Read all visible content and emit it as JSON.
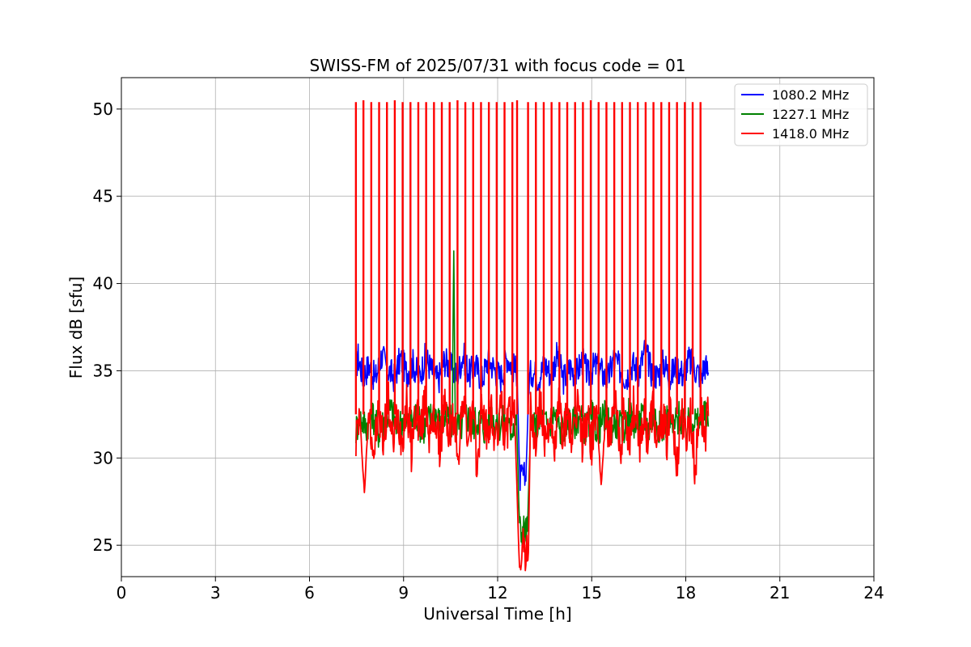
{
  "chart_data": {
    "type": "line",
    "title": "SWISS-FM of 2025/07/31 with focus code = 01",
    "xlabel": "Universal Time [h]",
    "ylabel": "Flux dB [sfu]",
    "xlim": [
      0,
      24
    ],
    "ylim": [
      23.2,
      51.8
    ],
    "xticks": [
      "0",
      "3",
      "6",
      "9",
      "12",
      "15",
      "18",
      "21",
      "24"
    ],
    "yticks": [
      "25",
      "30",
      "35",
      "40",
      "45",
      "50"
    ],
    "grid": true,
    "legend_position": "top-right",
    "series": [
      {
        "name": "1080.2 MHz",
        "color": "#0000ff",
        "x": [
          7.48,
          7.55,
          7.7,
          7.9,
          8.1,
          8.3,
          8.5,
          8.7,
          8.9,
          9.1,
          9.3,
          9.5,
          9.7,
          9.9,
          10.1,
          10.3,
          10.5,
          10.7,
          10.9,
          11.1,
          11.3,
          11.5,
          11.7,
          11.9,
          12.1,
          12.3,
          12.5,
          12.62,
          12.7,
          12.75,
          12.8,
          12.9,
          13.0,
          13.1,
          13.3,
          13.5,
          13.7,
          13.9,
          14.1,
          14.3,
          14.5,
          14.7,
          14.9,
          15.1,
          15.3,
          15.5,
          15.7,
          15.9,
          16.1,
          16.3,
          16.5,
          16.7,
          16.9,
          17.1,
          17.3,
          17.5,
          17.7,
          17.9,
          18.1,
          18.3,
          18.5,
          18.6,
          18.72
        ],
        "values": [
          35.2,
          35.8,
          34.7,
          35.3,
          34.5,
          35.9,
          35.1,
          34.6,
          35.7,
          34.9,
          35.4,
          34.6,
          35.8,
          35.0,
          34.4,
          35.6,
          35.2,
          34.7,
          35.9,
          34.8,
          35.3,
          34.5,
          35.7,
          35.1,
          34.6,
          35.8,
          35.2,
          34.9,
          28.9,
          28.7,
          29.0,
          28.8,
          34.5,
          35.0,
          34.6,
          35.4,
          34.8,
          35.9,
          34.5,
          35.2,
          34.8,
          35.6,
          34.7,
          35.3,
          35.0,
          34.4,
          35.7,
          35.1,
          34.6,
          35.4,
          34.9,
          36.2,
          35.0,
          34.7,
          35.5,
          34.6,
          35.3,
          34.8,
          35.6,
          35.1,
          34.7,
          35.4,
          34.9
        ]
      },
      {
        "name": "1227.1 MHz",
        "color": "#008000",
        "x": [
          7.48,
          7.6,
          7.8,
          8.0,
          8.2,
          8.4,
          8.6,
          8.8,
          9.0,
          9.2,
          9.4,
          9.6,
          9.8,
          10.0,
          10.2,
          10.4,
          10.55,
          10.6,
          10.65,
          10.8,
          11.0,
          11.2,
          11.4,
          11.6,
          11.8,
          12.0,
          12.2,
          12.4,
          12.6,
          12.7,
          12.75,
          12.85,
          12.95,
          13.05,
          13.2,
          13.4,
          13.6,
          13.8,
          14.0,
          14.2,
          14.4,
          14.6,
          14.8,
          15.0,
          15.2,
          15.4,
          15.6,
          15.8,
          16.0,
          16.2,
          16.4,
          16.6,
          16.8,
          17.0,
          17.2,
          17.4,
          17.6,
          17.8,
          18.0,
          18.2,
          18.4,
          18.6,
          18.72
        ],
        "values": [
          31.6,
          32.4,
          31.8,
          32.6,
          31.5,
          32.2,
          32.8,
          31.7,
          32.3,
          31.9,
          32.5,
          31.6,
          32.2,
          32.7,
          31.8,
          32.4,
          32.0,
          42.0,
          32.1,
          31.7,
          32.5,
          31.9,
          32.3,
          31.6,
          32.6,
          31.8,
          32.2,
          31.5,
          32.4,
          25.9,
          25.8,
          25.9,
          25.8,
          32.0,
          31.6,
          32.3,
          31.8,
          32.6,
          31.5,
          32.2,
          31.9,
          32.5,
          31.7,
          32.3,
          31.6,
          32.4,
          31.8,
          32.1,
          31.5,
          32.6,
          31.9,
          32.3,
          31.7,
          32.5,
          31.6,
          32.2,
          31.8,
          32.4,
          31.6,
          32.3,
          31.9,
          32.5,
          31.8
        ]
      },
      {
        "name": "1418.0 MHz",
        "color": "#ff0000",
        "base_x": [
          7.48,
          7.6,
          7.75,
          7.9,
          8.05,
          8.2,
          8.35,
          8.5,
          8.65,
          8.8,
          8.95,
          9.1,
          9.25,
          9.4,
          9.55,
          9.7,
          9.85,
          10.0,
          10.15,
          10.3,
          10.45,
          10.6,
          10.75,
          10.9,
          11.05,
          11.2,
          11.35,
          11.5,
          11.65,
          11.8,
          11.95,
          12.1,
          12.25,
          12.4,
          12.55,
          12.68,
          12.72,
          12.8,
          12.9,
          12.98,
          13.05,
          13.2,
          13.35,
          13.5,
          13.65,
          13.8,
          13.95,
          14.1,
          14.25,
          14.4,
          14.55,
          14.7,
          14.85,
          15.0,
          15.15,
          15.3,
          15.45,
          15.6,
          15.75,
          15.9,
          16.05,
          16.2,
          16.35,
          16.5,
          16.65,
          16.8,
          16.95,
          17.1,
          17.25,
          17.4,
          17.55,
          17.7,
          17.85,
          18.0,
          18.15,
          18.3,
          18.45,
          18.6,
          18.72
        ],
        "base_values": [
          31.2,
          32.5,
          28.0,
          33.0,
          30.2,
          32.6,
          31.0,
          33.4,
          30.8,
          32.4,
          31.2,
          33.2,
          30.5,
          32.9,
          31.4,
          33.5,
          31.0,
          32.5,
          30.6,
          33.0,
          31.4,
          32.2,
          30.4,
          33.6,
          31.1,
          32.6,
          29.5,
          33.2,
          31.3,
          32.4,
          30.8,
          33.0,
          31.2,
          32.6,
          32.0,
          24.6,
          24.6,
          24.7,
          24.6,
          24.7,
          32.5,
          30.6,
          33.2,
          31.0,
          32.4,
          30.2,
          33.0,
          31.3,
          32.6,
          30.5,
          33.3,
          31.0,
          32.4,
          30.8,
          33.1,
          28.3,
          32.6,
          30.9,
          33.0,
          30.5,
          32.7,
          31.1,
          33.2,
          30.6,
          32.4,
          31.2,
          33.0,
          30.3,
          32.6,
          30.9,
          33.3,
          29.3,
          32.8,
          31.1,
          32.5,
          29.2,
          33.0,
          31.4,
          32.4
        ],
        "spikes_x": [
          7.48,
          7.72,
          7.97,
          8.22,
          8.47,
          8.72,
          8.97,
          9.22,
          9.47,
          9.72,
          9.97,
          10.22,
          10.47,
          10.72,
          10.97,
          11.22,
          11.47,
          11.72,
          11.97,
          12.22,
          12.47,
          12.62,
          12.97,
          13.22,
          13.47,
          13.72,
          13.97,
          14.22,
          14.47,
          14.72,
          14.97,
          15.22,
          15.47,
          15.72,
          15.97,
          16.22,
          16.47,
          16.72,
          16.97,
          17.22,
          17.47,
          17.72,
          17.97,
          18.22,
          18.47
        ],
        "spikes_values": [
          50.4,
          50.5,
          50.4,
          50.4,
          50.4,
          50.5,
          50.4,
          50.4,
          50.4,
          50.4,
          50.4,
          50.4,
          50.4,
          50.5,
          50.4,
          50.4,
          50.4,
          50.4,
          50.4,
          50.4,
          50.4,
          50.5,
          50.4,
          50.4,
          50.4,
          50.4,
          50.4,
          50.4,
          50.4,
          50.4,
          50.5,
          50.4,
          50.4,
          50.4,
          50.4,
          50.4,
          50.4,
          50.4,
          50.4,
          50.4,
          50.4,
          50.4,
          50.4,
          50.4,
          50.4
        ]
      }
    ]
  }
}
